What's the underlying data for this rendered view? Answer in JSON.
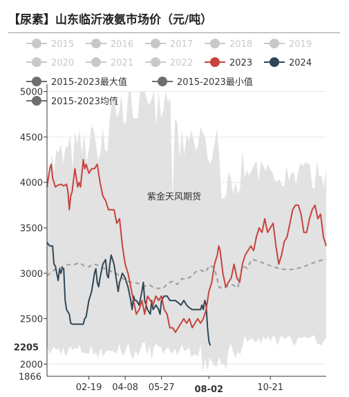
{
  "title": "【尿素】山东临沂液氨市场价（元/吨）",
  "colors": {
    "inactive": "#c8c8c8",
    "s2023": "#c9413b",
    "s2024": "#2f4556",
    "stat": "#6e6e6e",
    "band": "#e2e2e2",
    "avg": "#a0a0a0"
  },
  "chart_data": {
    "type": "line",
    "watermark": "紫金天风期货",
    "legend": [
      {
        "name": "2015",
        "active": false
      },
      {
        "name": "2016",
        "active": false
      },
      {
        "name": "2017",
        "active": false
      },
      {
        "name": "2018",
        "active": false
      },
      {
        "name": "2019",
        "active": false
      },
      {
        "name": "2020",
        "active": false
      },
      {
        "name": "2021",
        "active": false
      },
      {
        "name": "2022",
        "active": false
      },
      {
        "name": "2023",
        "active": true
      },
      {
        "name": "2024",
        "active": true
      }
    ],
    "stat_legend": [
      "2015-2023最大值",
      "2015-2023最小值",
      "2015-2023均值"
    ],
    "y_ticks": [
      2000,
      2500,
      3000,
      3500,
      4000,
      4500,
      5000
    ],
    "ylim": [
      1866,
      5050
    ],
    "y_min_label": "1866",
    "y_current_label": "2205",
    "y_current": 2205,
    "x_ticks": [
      "02-19",
      "04-08",
      "05-27",
      "08-02",
      "10-21"
    ],
    "x_tick_pos": [
      0.15,
      0.28,
      0.41,
      0.58,
      0.8
    ],
    "x_highlight": "08-02",
    "series": [
      {
        "name": "2024",
        "points": [
          [
            0,
            3340
          ],
          [
            0.01,
            3300
          ],
          [
            0.02,
            3300
          ],
          [
            0.025,
            3100
          ],
          [
            0.03,
            3080
          ],
          [
            0.035,
            3000
          ],
          [
            0.04,
            2920
          ],
          [
            0.045,
            3050
          ],
          [
            0.05,
            3000
          ],
          [
            0.055,
            3060
          ],
          [
            0.06,
            3050
          ],
          [
            0.065,
            2700
          ],
          [
            0.07,
            2600
          ],
          [
            0.08,
            2550
          ],
          [
            0.085,
            2450
          ],
          [
            0.09,
            2440
          ],
          [
            0.11,
            2440
          ],
          [
            0.13,
            2440
          ],
          [
            0.135,
            2500
          ],
          [
            0.14,
            2520
          ],
          [
            0.15,
            2700
          ],
          [
            0.16,
            2800
          ],
          [
            0.165,
            2900
          ],
          [
            0.17,
            3000
          ],
          [
            0.175,
            3050
          ],
          [
            0.18,
            2900
          ],
          [
            0.185,
            2850
          ],
          [
            0.19,
            2950
          ],
          [
            0.2,
            3100
          ],
          [
            0.21,
            3150
          ],
          [
            0.215,
            2980
          ],
          [
            0.22,
            2950
          ],
          [
            0.225,
            3100
          ],
          [
            0.23,
            3200
          ],
          [
            0.24,
            3100
          ],
          [
            0.25,
            2900
          ],
          [
            0.255,
            2800
          ],
          [
            0.26,
            2900
          ],
          [
            0.27,
            3000
          ],
          [
            0.28,
            2950
          ],
          [
            0.29,
            2850
          ],
          [
            0.3,
            2700
          ],
          [
            0.305,
            2600
          ],
          [
            0.31,
            2750
          ],
          [
            0.315,
            2700
          ],
          [
            0.32,
            2700
          ],
          [
            0.33,
            2650
          ],
          [
            0.34,
            2800
          ],
          [
            0.345,
            2900
          ],
          [
            0.35,
            2700
          ],
          [
            0.36,
            2600
          ],
          [
            0.37,
            2550
          ],
          [
            0.375,
            2700
          ],
          [
            0.38,
            2600
          ],
          [
            0.39,
            2650
          ],
          [
            0.4,
            2600
          ],
          [
            0.405,
            2550
          ],
          [
            0.41,
            2700
          ],
          [
            0.42,
            2750
          ],
          [
            0.43,
            2750
          ],
          [
            0.44,
            2700
          ],
          [
            0.46,
            2700
          ],
          [
            0.48,
            2650
          ],
          [
            0.49,
            2700
          ],
          [
            0.5,
            2650
          ],
          [
            0.51,
            2620
          ],
          [
            0.52,
            2600
          ],
          [
            0.53,
            2600
          ],
          [
            0.54,
            2600
          ],
          [
            0.55,
            2600
          ],
          [
            0.555,
            2650
          ],
          [
            0.56,
            2600
          ],
          [
            0.565,
            2700
          ],
          [
            0.57,
            2650
          ],
          [
            0.575,
            2400
          ],
          [
            0.58,
            2250
          ],
          [
            0.585,
            2205
          ]
        ]
      },
      {
        "name": "2023",
        "points": [
          [
            0,
            3950
          ],
          [
            0.005,
            4050
          ],
          [
            0.01,
            4150
          ],
          [
            0.015,
            4200
          ],
          [
            0.02,
            4050
          ],
          [
            0.025,
            4000
          ],
          [
            0.03,
            3950
          ],
          [
            0.04,
            3970
          ],
          [
            0.05,
            3980
          ],
          [
            0.06,
            3960
          ],
          [
            0.07,
            3980
          ],
          [
            0.075,
            3900
          ],
          [
            0.08,
            3700
          ],
          [
            0.085,
            3850
          ],
          [
            0.09,
            3900
          ],
          [
            0.1,
            4150
          ],
          [
            0.11,
            3950
          ],
          [
            0.115,
            4000
          ],
          [
            0.12,
            3950
          ],
          [
            0.13,
            4250
          ],
          [
            0.135,
            4150
          ],
          [
            0.14,
            4200
          ],
          [
            0.145,
            4150
          ],
          [
            0.15,
            4100
          ],
          [
            0.16,
            4150
          ],
          [
            0.17,
            4150
          ],
          [
            0.18,
            4200
          ],
          [
            0.19,
            4000
          ],
          [
            0.2,
            3850
          ],
          [
            0.21,
            3800
          ],
          [
            0.22,
            3700
          ],
          [
            0.24,
            3700
          ],
          [
            0.25,
            3550
          ],
          [
            0.26,
            3600
          ],
          [
            0.27,
            3300
          ],
          [
            0.28,
            3100
          ],
          [
            0.29,
            3000
          ],
          [
            0.3,
            2850
          ],
          [
            0.31,
            2700
          ],
          [
            0.32,
            2550
          ],
          [
            0.33,
            2600
          ],
          [
            0.34,
            2700
          ],
          [
            0.35,
            2550
          ],
          [
            0.36,
            2750
          ],
          [
            0.37,
            2700
          ],
          [
            0.38,
            2650
          ],
          [
            0.39,
            2750
          ],
          [
            0.4,
            2700
          ],
          [
            0.41,
            2750
          ],
          [
            0.42,
            2600
          ],
          [
            0.43,
            2550
          ],
          [
            0.44,
            2400
          ],
          [
            0.45,
            2400
          ],
          [
            0.46,
            2350
          ],
          [
            0.47,
            2400
          ],
          [
            0.48,
            2450
          ],
          [
            0.49,
            2500
          ],
          [
            0.5,
            2450
          ],
          [
            0.51,
            2500
          ],
          [
            0.52,
            2400
          ],
          [
            0.53,
            2450
          ],
          [
            0.54,
            2500
          ],
          [
            0.55,
            2450
          ],
          [
            0.56,
            2500
          ],
          [
            0.57,
            2600
          ],
          [
            0.575,
            2700
          ],
          [
            0.58,
            2800
          ],
          [
            0.59,
            2900
          ],
          [
            0.6,
            3100
          ],
          [
            0.61,
            3200
          ],
          [
            0.615,
            3300
          ],
          [
            0.62,
            3250
          ],
          [
            0.63,
            3000
          ],
          [
            0.64,
            2850
          ],
          [
            0.65,
            2900
          ],
          [
            0.66,
            2950
          ],
          [
            0.67,
            3100
          ],
          [
            0.68,
            2950
          ],
          [
            0.69,
            2900
          ],
          [
            0.7,
            3100
          ],
          [
            0.71,
            3200
          ],
          [
            0.72,
            3250
          ],
          [
            0.73,
            3300
          ],
          [
            0.74,
            3250
          ],
          [
            0.75,
            3400
          ],
          [
            0.76,
            3500
          ],
          [
            0.77,
            3450
          ],
          [
            0.78,
            3600
          ],
          [
            0.79,
            3450
          ],
          [
            0.8,
            3500
          ],
          [
            0.81,
            3550
          ],
          [
            0.82,
            3300
          ],
          [
            0.83,
            3100
          ],
          [
            0.84,
            3200
          ],
          [
            0.85,
            3350
          ],
          [
            0.86,
            3400
          ],
          [
            0.87,
            3550
          ],
          [
            0.88,
            3700
          ],
          [
            0.89,
            3750
          ],
          [
            0.9,
            3750
          ],
          [
            0.91,
            3650
          ],
          [
            0.92,
            3450
          ],
          [
            0.93,
            3450
          ],
          [
            0.94,
            3600
          ],
          [
            0.95,
            3700
          ],
          [
            0.96,
            3750
          ],
          [
            0.97,
            3600
          ],
          [
            0.98,
            3650
          ],
          [
            0.99,
            3400
          ],
          [
            1.0,
            3300
          ]
        ]
      }
    ]
  }
}
